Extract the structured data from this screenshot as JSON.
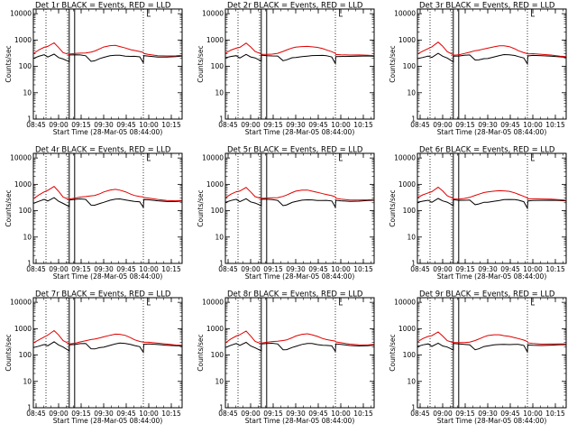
{
  "colors": {
    "events": "#000000",
    "lld": "#e00000",
    "axis": "#000000",
    "background": "#ffffff"
  },
  "chart_data": {
    "type": "line",
    "layout": "3x3 grid of detector panels",
    "panel_titles": [
      "Det 1r BLACK = Events, RED = LLD",
      "Det 2r BLACK = Events, RED = LLD",
      "Det 3r BLACK = Events, RED = LLD",
      "Det 4r BLACK = Events, RED = LLD",
      "Det 5r BLACK = Events, RED = LLD",
      "Det 6r BLACK = Events, RED = LLD",
      "Det 7r BLACK = Events, RED = LLD",
      "Det 8r BLACK = Events, RED = LLD",
      "Det 9r BLACK = Events, RED = LLD"
    ],
    "xlabel": "Start Time (28-Mar-05 08:44:00)",
    "ylabel": "Counts/sec",
    "x_range_hours": [
      8.72,
      10.37
    ],
    "x_ticks_hours": [
      8.75,
      9.0,
      9.25,
      9.5,
      9.75,
      10.0,
      10.25
    ],
    "x_tick_labels": [
      "08:45",
      "09:00",
      "09:15",
      "09:30",
      "09:45",
      "10:00",
      "10:15"
    ],
    "y_scale": "log",
    "ylim": [
      1,
      15000
    ],
    "y_ticks": [
      1,
      10,
      100,
      1000,
      10000
    ],
    "y_tick_labels": [
      "1",
      "10",
      "100",
      "1000",
      "10000"
    ],
    "dotted_lines_hours": [
      8.86,
      9.1,
      9.94
    ],
    "solid_lines_hours": [
      9.118,
      9.178
    ],
    "corner_marker_hours": [
      9.985,
      10.02
    ],
    "times_hours": [
      8.72,
      8.78,
      8.84,
      8.88,
      8.95,
      9.0,
      9.05,
      9.118,
      9.118,
      9.18,
      9.24,
      9.3,
      9.36,
      9.4,
      9.46,
      9.5,
      9.57,
      9.63,
      9.68,
      9.74,
      9.8,
      9.84,
      9.9,
      9.94,
      9.945,
      10.0,
      10.1,
      10.2,
      10.3,
      10.37
    ],
    "series": [
      {
        "name": "BLACK = Events",
        "color_key": "events",
        "values": [
          200,
          230,
          260,
          220,
          300,
          230,
          200,
          150,
          260,
          260,
          265,
          260,
          165,
          170,
          200,
          210,
          240,
          260,
          270,
          260,
          250,
          240,
          220,
          130,
          250,
          250,
          240,
          235,
          235,
          235
        ]
      },
      {
        "name": "RED = LLD",
        "color_key": "lld",
        "values": [
          300,
          400,
          500,
          560,
          800,
          550,
          350,
          280,
          280,
          290,
          310,
          330,
          370,
          400,
          470,
          520,
          580,
          610,
          580,
          530,
          450,
          400,
          350,
          320,
          300,
          290,
          270,
          260,
          250,
          250
        ]
      }
    ]
  }
}
